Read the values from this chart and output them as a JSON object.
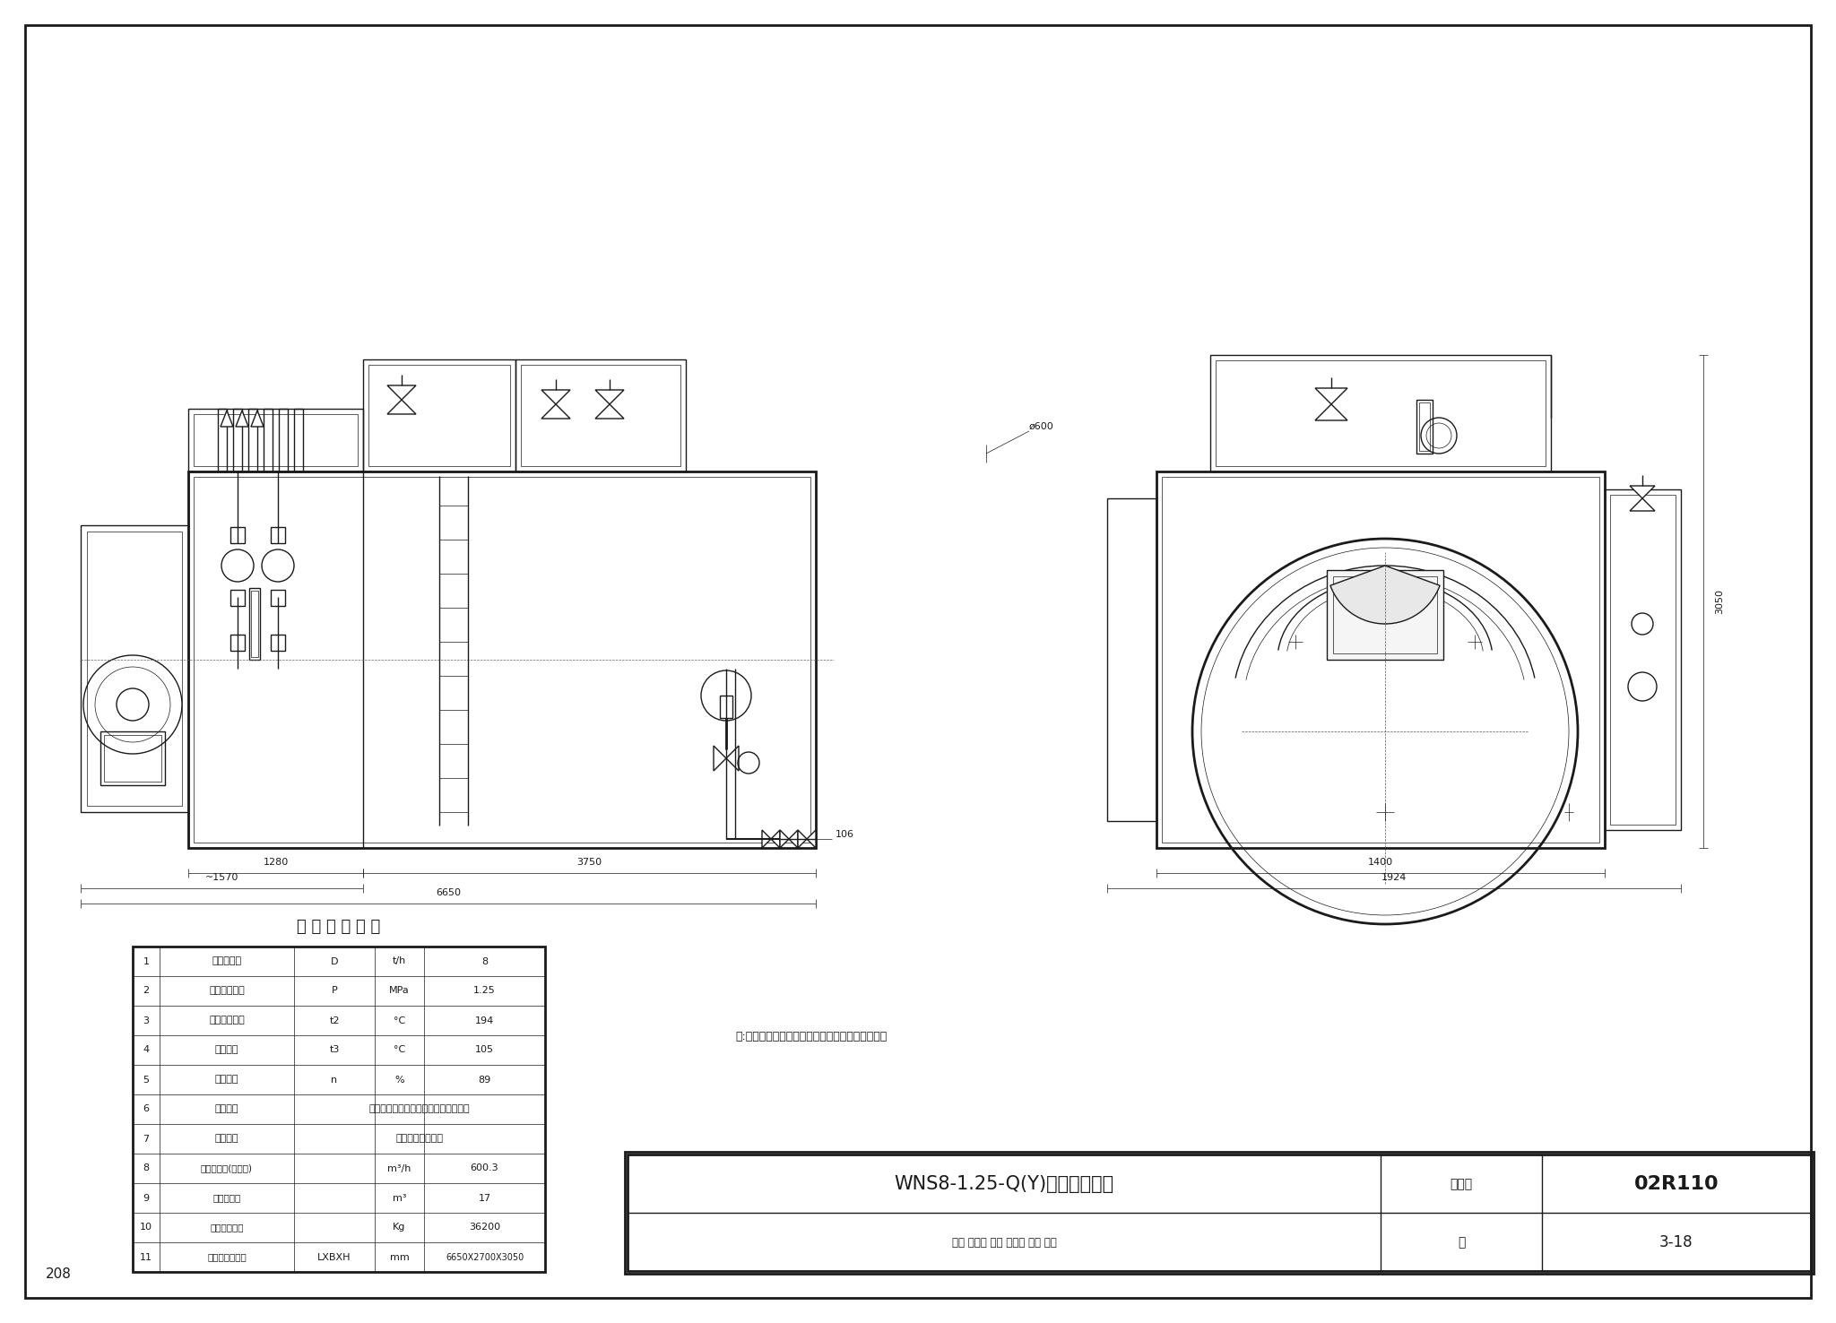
{
  "bg_color": "#ffffff",
  "line_color": "#1a1a1a",
  "title_table": "锅 炉 主 要 性 能",
  "table_rows": [
    [
      "1",
      "额定蒸发量",
      "D",
      "t/h",
      "8"
    ],
    [
      "2",
      "额定蒸汽压力",
      "P",
      "MPa",
      "1.25"
    ],
    [
      "3",
      "额定蒸汽温度",
      "t2",
      "°C",
      "194"
    ],
    [
      "4",
      "给水温度",
      "t3",
      "°C",
      "105"
    ],
    [
      "5",
      "设计效率",
      "n",
      "%",
      "89"
    ],
    [
      "6",
      "适用燃料",
      "天然气、轻油、重油、液化石油气等。",
      "",
      ""
    ],
    [
      "7",
      "调节方式",
      "全自动，滑动二级",
      "",
      ""
    ],
    [
      "8",
      "燃料消耗量(天然气)",
      "",
      "m³/h",
      "600.3"
    ],
    [
      "9",
      "锅炉水容积",
      "",
      "m³",
      "17"
    ],
    [
      "10",
      "锅炉运行重量",
      "",
      "Kg",
      "36200"
    ],
    [
      "11",
      "最大运输件尺寸",
      "LXBXH",
      "mm",
      "6650X2700X3050"
    ]
  ],
  "note_text": "注:本图按重庆锅炉总厂锅炉产品的技术资料编制。",
  "title_block_main": "WNS8-1.25-Q(Y)蒸汽锅炉总图",
  "title_block_label1": "图集号",
  "title_block_val1": "02R110",
  "title_block_label2": "页",
  "title_block_val2": "3-18",
  "page_num": "208",
  "dim_1280": "1280",
  "dim_3750": "3750",
  "dim_6650": "6650",
  "dim_1570": "~1570",
  "dim_1400": "1400",
  "dim_1924": "1924",
  "dim_3050": "3050",
  "dim_600": "ø600",
  "dim_106": "106"
}
